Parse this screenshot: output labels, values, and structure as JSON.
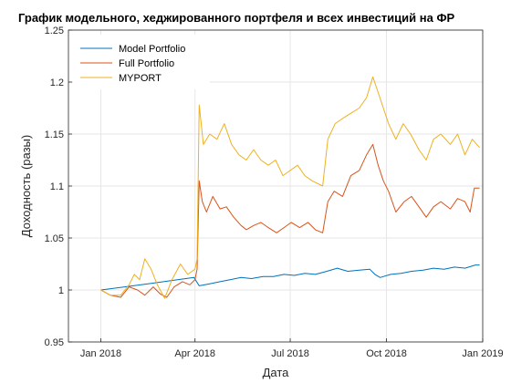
{
  "chart_data": {
    "type": "line",
    "title": "График модельного, хеджированного портфеля и всех инвестиций на ФР",
    "xlabel": "Дата",
    "ylabel": "Доходность (разы)",
    "xlim": [
      "2017-12-01",
      "2019-01-01"
    ],
    "ylim": [
      0.95,
      1.25
    ],
    "xticks": [
      {
        "date": "2018-01-01",
        "label": "Jan 2018"
      },
      {
        "date": "2018-04-01",
        "label": "Apr 2018"
      },
      {
        "date": "2018-07-01",
        "label": "Jul 2018"
      },
      {
        "date": "2018-10-01",
        "label": "Oct 2018"
      },
      {
        "date": "2019-01-01",
        "label": "Jan 2019"
      }
    ],
    "yticks": [
      0.95,
      1,
      1.05,
      1.1,
      1.15,
      1.2,
      1.25
    ],
    "ytick_labels": [
      "0.95",
      "1",
      "1.05",
      "1.1",
      "1.15",
      "1.2",
      "1.25"
    ],
    "grid": true,
    "legend_position": "top-left",
    "series": [
      {
        "name": "Model Portfolio",
        "color": "#0072BD",
        "points": [
          [
            "2018-01-01",
            1.0
          ],
          [
            "2018-02-15",
            1.006
          ],
          [
            "2018-03-31",
            1.012
          ],
          [
            "2018-04-05",
            1.004
          ],
          [
            "2018-04-15",
            1.006
          ],
          [
            "2018-04-25",
            1.008
          ],
          [
            "2018-05-05",
            1.01
          ],
          [
            "2018-05-15",
            1.012
          ],
          [
            "2018-05-25",
            1.011
          ],
          [
            "2018-06-05",
            1.013
          ],
          [
            "2018-06-15",
            1.013
          ],
          [
            "2018-06-25",
            1.015
          ],
          [
            "2018-07-05",
            1.014
          ],
          [
            "2018-07-15",
            1.016
          ],
          [
            "2018-07-25",
            1.015
          ],
          [
            "2018-08-05",
            1.018
          ],
          [
            "2018-08-15",
            1.021
          ],
          [
            "2018-08-25",
            1.018
          ],
          [
            "2018-09-05",
            1.019
          ],
          [
            "2018-09-15",
            1.02
          ],
          [
            "2018-09-20",
            1.015
          ],
          [
            "2018-09-25",
            1.012
          ],
          [
            "2018-10-05",
            1.015
          ],
          [
            "2018-10-15",
            1.016
          ],
          [
            "2018-10-25",
            1.018
          ],
          [
            "2018-11-05",
            1.019
          ],
          [
            "2018-11-15",
            1.021
          ],
          [
            "2018-11-25",
            1.02
          ],
          [
            "2018-12-05",
            1.022
          ],
          [
            "2018-12-15",
            1.021
          ],
          [
            "2018-12-25",
            1.024
          ],
          [
            "2018-12-29",
            1.024
          ]
        ]
      },
      {
        "name": "Full Portfolio",
        "color": "#D95319",
        "points": [
          [
            "2018-01-01",
            1.0
          ],
          [
            "2018-01-10",
            0.995
          ],
          [
            "2018-01-20",
            0.993
          ],
          [
            "2018-01-28",
            1.003
          ],
          [
            "2018-02-05",
            1.0
          ],
          [
            "2018-02-12",
            0.995
          ],
          [
            "2018-02-20",
            1.003
          ],
          [
            "2018-02-27",
            0.996
          ],
          [
            "2018-03-05",
            0.993
          ],
          [
            "2018-03-12",
            1.003
          ],
          [
            "2018-03-20",
            1.008
          ],
          [
            "2018-03-27",
            1.005
          ],
          [
            "2018-04-01",
            1.01
          ],
          [
            "2018-04-03",
            1.02
          ],
          [
            "2018-04-05",
            1.105
          ],
          [
            "2018-04-08",
            1.085
          ],
          [
            "2018-04-12",
            1.075
          ],
          [
            "2018-04-18",
            1.09
          ],
          [
            "2018-04-25",
            1.078
          ],
          [
            "2018-05-01",
            1.08
          ],
          [
            "2018-05-08",
            1.07
          ],
          [
            "2018-05-15",
            1.062
          ],
          [
            "2018-05-20",
            1.058
          ],
          [
            "2018-05-27",
            1.062
          ],
          [
            "2018-06-03",
            1.065
          ],
          [
            "2018-06-10",
            1.06
          ],
          [
            "2018-06-18",
            1.055
          ],
          [
            "2018-06-25",
            1.06
          ],
          [
            "2018-07-02",
            1.065
          ],
          [
            "2018-07-10",
            1.06
          ],
          [
            "2018-07-18",
            1.065
          ],
          [
            "2018-07-25",
            1.058
          ],
          [
            "2018-08-01",
            1.055
          ],
          [
            "2018-08-06",
            1.085
          ],
          [
            "2018-08-12",
            1.095
          ],
          [
            "2018-08-20",
            1.09
          ],
          [
            "2018-08-28",
            1.11
          ],
          [
            "2018-09-05",
            1.115
          ],
          [
            "2018-09-12",
            1.13
          ],
          [
            "2018-09-18",
            1.14
          ],
          [
            "2018-09-23",
            1.12
          ],
          [
            "2018-09-28",
            1.105
          ],
          [
            "2018-10-03",
            1.095
          ],
          [
            "2018-10-10",
            1.075
          ],
          [
            "2018-10-18",
            1.085
          ],
          [
            "2018-10-25",
            1.09
          ],
          [
            "2018-11-01",
            1.08
          ],
          [
            "2018-11-08",
            1.07
          ],
          [
            "2018-11-15",
            1.08
          ],
          [
            "2018-11-22",
            1.085
          ],
          [
            "2018-12-01",
            1.078
          ],
          [
            "2018-12-08",
            1.088
          ],
          [
            "2018-12-15",
            1.085
          ],
          [
            "2018-12-20",
            1.075
          ],
          [
            "2018-12-24",
            1.098
          ],
          [
            "2018-12-29",
            1.098
          ]
        ]
      },
      {
        "name": "MYPORT",
        "color": "#EDB120",
        "points": [
          [
            "2018-01-01",
            1.0
          ],
          [
            "2018-01-10",
            0.995
          ],
          [
            "2018-01-20",
            0.995
          ],
          [
            "2018-01-28",
            1.005
          ],
          [
            "2018-02-02",
            1.015
          ],
          [
            "2018-02-07",
            1.01
          ],
          [
            "2018-02-12",
            1.03
          ],
          [
            "2018-02-18",
            1.02
          ],
          [
            "2018-02-24",
            1.005
          ],
          [
            "2018-03-03",
            0.992
          ],
          [
            "2018-03-10",
            1.01
          ],
          [
            "2018-03-18",
            1.025
          ],
          [
            "2018-03-25",
            1.015
          ],
          [
            "2018-04-01",
            1.02
          ],
          [
            "2018-04-03",
            1.03
          ],
          [
            "2018-04-05",
            1.178
          ],
          [
            "2018-04-09",
            1.14
          ],
          [
            "2018-04-15",
            1.15
          ],
          [
            "2018-04-22",
            1.145
          ],
          [
            "2018-04-29",
            1.16
          ],
          [
            "2018-05-06",
            1.14
          ],
          [
            "2018-05-13",
            1.13
          ],
          [
            "2018-05-20",
            1.125
          ],
          [
            "2018-05-27",
            1.135
          ],
          [
            "2018-06-03",
            1.125
          ],
          [
            "2018-06-10",
            1.12
          ],
          [
            "2018-06-17",
            1.125
          ],
          [
            "2018-06-24",
            1.11
          ],
          [
            "2018-07-01",
            1.115
          ],
          [
            "2018-07-08",
            1.12
          ],
          [
            "2018-07-15",
            1.11
          ],
          [
            "2018-07-22",
            1.105
          ],
          [
            "2018-08-01",
            1.1
          ],
          [
            "2018-08-06",
            1.145
          ],
          [
            "2018-08-13",
            1.16
          ],
          [
            "2018-08-20",
            1.165
          ],
          [
            "2018-08-28",
            1.17
          ],
          [
            "2018-09-05",
            1.175
          ],
          [
            "2018-09-12",
            1.185
          ],
          [
            "2018-09-18",
            1.205
          ],
          [
            "2018-09-23",
            1.19
          ],
          [
            "2018-09-28",
            1.175
          ],
          [
            "2018-10-03",
            1.16
          ],
          [
            "2018-10-10",
            1.145
          ],
          [
            "2018-10-17",
            1.16
          ],
          [
            "2018-10-24",
            1.15
          ],
          [
            "2018-11-01",
            1.135
          ],
          [
            "2018-11-08",
            1.125
          ],
          [
            "2018-11-15",
            1.145
          ],
          [
            "2018-11-22",
            1.15
          ],
          [
            "2018-12-01",
            1.14
          ],
          [
            "2018-12-08",
            1.15
          ],
          [
            "2018-12-15",
            1.13
          ],
          [
            "2018-12-22",
            1.145
          ],
          [
            "2018-12-29",
            1.137
          ]
        ]
      }
    ]
  }
}
